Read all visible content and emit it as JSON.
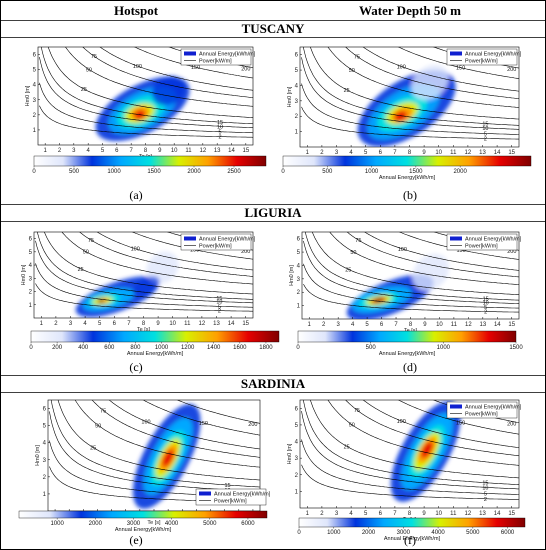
{
  "columns": {
    "left": "Hotspot",
    "right": "Water Depth 50 m"
  },
  "regions": [
    {
      "name": "TUSCANY"
    },
    {
      "name": "LIGURIA"
    },
    {
      "name": "SARDINIA"
    }
  ],
  "legend": {
    "energy": "Annual Energy[kWh/m]",
    "power": "Power[kW/m]"
  },
  "colorbar_title": "Annual Energy[kWh/m]",
  "colors": {
    "cmap": [
      "#ffffff",
      "#dfe6fb",
      "#0033dd",
      "#00a8ff",
      "#00e0e0",
      "#d8f000",
      "#ffa000",
      "#e60000",
      "#800000"
    ]
  },
  "chart_data": [
    {
      "type": "heatmap",
      "label": "(a)",
      "region": "TUSCANY",
      "column": "Hotspot",
      "xlabel": "Te [s]",
      "ylabel": "Hm0 [m]",
      "xlim": [
        0.5,
        15.5
      ],
      "ylim": [
        0,
        6.5
      ],
      "xticks": [
        1,
        2,
        3,
        4,
        5,
        6,
        7,
        8,
        9,
        10,
        11,
        12,
        13,
        14,
        15
      ],
      "yticks": [
        1,
        2,
        3,
        4,
        5,
        6
      ],
      "contours": [
        {
          "level": "2"
        },
        {
          "level": "5"
        },
        {
          "level": "10"
        },
        {
          "level": "15"
        },
        {
          "level": "25"
        },
        {
          "level": "50"
        },
        {
          "level": "75"
        },
        {
          "level": "100"
        },
        {
          "level": "150"
        },
        {
          "level": "200"
        }
      ],
      "energy_peak": {
        "te": 7.6,
        "hm0": 2.1
      },
      "colorbar": {
        "min": 0,
        "max": 2900,
        "ticks": [
          0,
          500,
          1000,
          1500,
          2000,
          2500
        ],
        "title": ""
      }
    },
    {
      "type": "heatmap",
      "label": "(b)",
      "region": "TUSCANY",
      "column": "Water Depth 50 m",
      "xlabel": "Te [s]",
      "ylabel": "Hm0 [m]",
      "xlim": [
        0.5,
        15.5
      ],
      "ylim": [
        0,
        6.5
      ],
      "xticks": [
        1,
        2,
        3,
        4,
        5,
        6,
        7,
        8,
        9,
        10,
        11,
        12,
        13,
        14,
        15
      ],
      "yticks": [
        1,
        2,
        3,
        4,
        5,
        6
      ],
      "contours": [
        {
          "level": "2"
        },
        {
          "level": "5"
        },
        {
          "level": "10"
        },
        {
          "level": "15"
        },
        {
          "level": "25"
        },
        {
          "level": "50"
        },
        {
          "level": "75"
        },
        {
          "level": "100"
        },
        {
          "level": "150"
        },
        {
          "level": "200"
        }
      ],
      "energy_peak": {
        "te": 7.6,
        "hm0": 2.2
      },
      "colorbar": {
        "min": 0,
        "max": 2800,
        "ticks": [
          0,
          500,
          1000,
          1500,
          2000
        ],
        "title": "Annual Energy[kWh/m]"
      }
    },
    {
      "type": "heatmap",
      "label": "(c)",
      "region": "LIGURIA",
      "column": "Hotspot",
      "xlabel": "Te [s]",
      "ylabel": "Hm0 [m]",
      "xlim": [
        0.5,
        15.5
      ],
      "ylim": [
        0,
        6.5
      ],
      "xticks": [
        1,
        2,
        3,
        4,
        5,
        6,
        7,
        8,
        9,
        10,
        11,
        12,
        13,
        14,
        15
      ],
      "yticks": [
        1,
        2,
        3,
        4,
        5,
        6
      ],
      "contours": [
        {
          "level": "2"
        },
        {
          "level": "5"
        },
        {
          "level": "10"
        },
        {
          "level": "15"
        },
        {
          "level": "25"
        },
        {
          "level": "50"
        },
        {
          "level": "75"
        },
        {
          "level": "100"
        },
        {
          "level": "150"
        },
        {
          "level": "200"
        }
      ],
      "energy_peak": {
        "te": 5.2,
        "hm0": 1.3
      },
      "colorbar": {
        "min": 0,
        "max": 1900,
        "ticks": [
          0,
          200,
          400,
          600,
          800,
          1000,
          1200,
          1400,
          1600,
          1800
        ],
        "title": "Annual Energy[kWh/m]"
      }
    },
    {
      "type": "heatmap",
      "label": "(d)",
      "region": "LIGURIA",
      "column": "Water Depth 50 m",
      "xlabel": "Te [s]",
      "ylabel": "Hm0 [m]",
      "xlim": [
        0.5,
        15.5
      ],
      "ylim": [
        0,
        6.5
      ],
      "xticks": [
        1,
        2,
        3,
        4,
        5,
        6,
        7,
        8,
        9,
        10,
        11,
        12,
        13,
        14,
        15
      ],
      "yticks": [
        1,
        2,
        3,
        4,
        5,
        6
      ],
      "contours": [
        {
          "level": "2"
        },
        {
          "level": "5"
        },
        {
          "level": "10"
        },
        {
          "level": "15"
        },
        {
          "level": "25"
        },
        {
          "level": "50"
        },
        {
          "level": "75"
        },
        {
          "level": "100"
        },
        {
          "level": "150"
        },
        {
          "level": "200"
        }
      ],
      "energy_peak": {
        "te": 5.8,
        "hm0": 1.4
      },
      "colorbar": {
        "min": 0,
        "max": 1500,
        "ticks": [
          0,
          500,
          1000,
          1500
        ],
        "title": "Annual Energy[kWh/m]"
      }
    },
    {
      "type": "heatmap",
      "label": "(e)",
      "region": "SARDINIA",
      "column": "Hotspot",
      "xlabel": "Te [s]",
      "ylabel": "Hm0 [m]",
      "xlim": [
        0.5,
        15.5
      ],
      "ylim": [
        0,
        6.5
      ],
      "xticks": [
        1,
        2,
        3,
        4,
        5,
        6,
        7,
        8,
        9,
        10,
        11,
        12,
        13,
        14,
        15
      ],
      "yticks": [
        1,
        2,
        3,
        4,
        5,
        6
      ],
      "contours": [
        {
          "level": "2"
        },
        {
          "level": "5"
        },
        {
          "level": "10"
        },
        {
          "level": "15"
        },
        {
          "level": "25"
        },
        {
          "level": "50"
        },
        {
          "level": "75"
        },
        {
          "level": "100"
        },
        {
          "level": "150"
        },
        {
          "level": "200"
        }
      ],
      "energy_peak": {
        "te": 9.0,
        "hm0": 3.1
      },
      "colorbar": {
        "min": 0,
        "max": 6500,
        "ticks": [
          1000,
          2000,
          3000,
          4000,
          5000,
          6000
        ],
        "title": "Annual Energy[kWh/m]"
      }
    },
    {
      "type": "heatmap",
      "label": "(f)",
      "region": "SARDINIA",
      "column": "Water Depth 50 m",
      "xlabel": "Te [s]",
      "ylabel": "Hm0 [m]",
      "xlim": [
        0.5,
        15.5
      ],
      "ylim": [
        0,
        6.5
      ],
      "xticks": [
        1,
        2,
        3,
        4,
        5,
        6,
        7,
        8,
        9,
        10,
        11,
        12,
        13,
        14,
        15
      ],
      "yticks": [
        1,
        2,
        3,
        4,
        5,
        6
      ],
      "contours": [
        {
          "level": "2"
        },
        {
          "level": "5"
        },
        {
          "level": "10"
        },
        {
          "level": "15"
        },
        {
          "level": "25"
        },
        {
          "level": "50"
        },
        {
          "level": "75"
        },
        {
          "level": "100"
        },
        {
          "level": "150"
        },
        {
          "level": "200"
        }
      ],
      "energy_peak": {
        "te": 9.2,
        "hm0": 3.4
      },
      "colorbar": {
        "min": 0,
        "max": 6500,
        "ticks": [
          0,
          1000,
          2000,
          3000,
          4000,
          5000,
          6000
        ],
        "title": "Annual Energy[kWh/m]"
      }
    }
  ]
}
